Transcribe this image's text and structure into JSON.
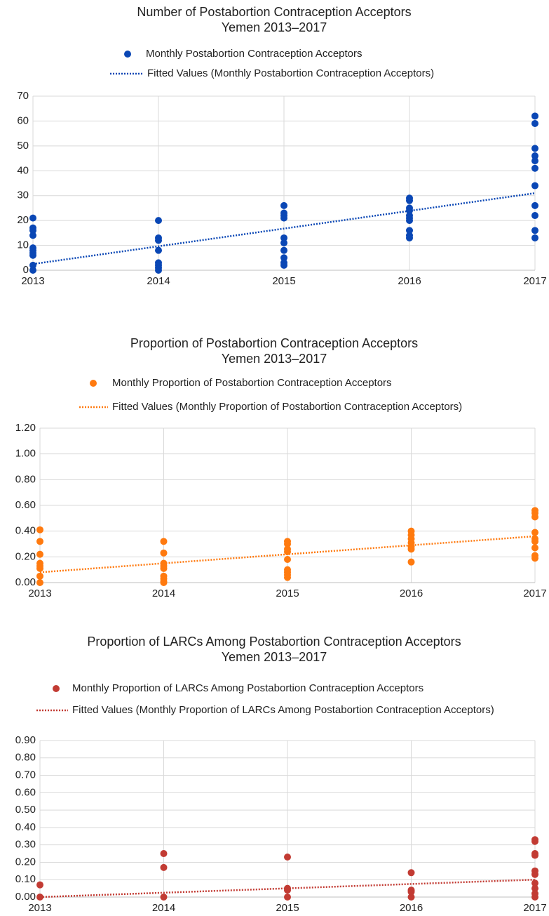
{
  "chart_data": [
    {
      "type": "scatter",
      "title": "Number of Postabortion Contraception Acceptors",
      "subtitle": "Yemen 2013–2017",
      "xlim": [
        2013,
        2017
      ],
      "xticks": [
        2013,
        2014,
        2015,
        2016,
        2017
      ],
      "ylim": [
        0,
        70
      ],
      "yticks": [
        0,
        10,
        20,
        30,
        40,
        50,
        60,
        70
      ],
      "grid": true,
      "series": [
        {
          "name": "Monthly Postabortion Contraception Acceptors",
          "type": "scatter",
          "color": "#0a47b5",
          "x": [
            2013,
            2013,
            2013,
            2013,
            2013,
            2013,
            2013,
            2013,
            2013,
            2013,
            2014,
            2014,
            2014,
            2014,
            2014,
            2014,
            2014,
            2014,
            2015,
            2015,
            2015,
            2015,
            2015,
            2015,
            2015,
            2015,
            2015,
            2015,
            2016,
            2016,
            2016,
            2016,
            2016,
            2016,
            2016,
            2016,
            2016,
            2016,
            2017,
            2017,
            2017,
            2017,
            2017,
            2017,
            2017,
            2017,
            2017,
            2017,
            2017
          ],
          "values": [
            21,
            17,
            16,
            14,
            9,
            8,
            7,
            6,
            2,
            0,
            20,
            13,
            12,
            8,
            3,
            2,
            1,
            0,
            26,
            23,
            22,
            21,
            13,
            11,
            8,
            5,
            3,
            2,
            29,
            28,
            25,
            24,
            22,
            21,
            20,
            16,
            14,
            13,
            62,
            59,
            49,
            46,
            44,
            41,
            34,
            26,
            22,
            16,
            13
          ]
        },
        {
          "name": "Fitted Values (Monthly Postabortion Contraception Acceptors)",
          "type": "line",
          "color": "#0a47b5",
          "x": [
            2013,
            2017
          ],
          "values": [
            2.5,
            31
          ]
        }
      ]
    },
    {
      "type": "scatter",
      "title": "Proportion of Postabortion Contraception Acceptors",
      "subtitle": "Yemen 2013–2017",
      "xlim": [
        2013,
        2017
      ],
      "xticks": [
        2013,
        2014,
        2015,
        2016,
        2017
      ],
      "ylim": [
        0,
        1.2
      ],
      "yticks": [
        {
          "value": 0,
          "label": "0.00"
        },
        {
          "value": 0.2,
          "label": "0.20"
        },
        {
          "value": 0.4,
          "label": "0.40"
        },
        {
          "value": 0.6,
          "label": "0.60"
        },
        {
          "value": 0.8,
          "label": "0.80"
        },
        {
          "value": 1,
          "label": "1.00"
        },
        {
          "value": 1.2,
          "label": "1.20"
        }
      ],
      "grid": true,
      "series": [
        {
          "name": "Monthly Proportion of Postabortion Contraception Acceptors",
          "type": "scatter",
          "color": "#ff7a0f",
          "x": [
            2013,
            2013,
            2013,
            2013,
            2013,
            2013,
            2013,
            2013,
            2014,
            2014,
            2014,
            2014,
            2014,
            2014,
            2014,
            2014,
            2014,
            2015,
            2015,
            2015,
            2015,
            2015,
            2015,
            2015,
            2015,
            2015,
            2016,
            2016,
            2016,
            2016,
            2016,
            2016,
            2016,
            2017,
            2017,
            2017,
            2017,
            2017,
            2017,
            2017,
            2017,
            2017
          ],
          "values": [
            0.41,
            0.32,
            0.22,
            0.15,
            0.13,
            0.11,
            0.05,
            0,
            0.32,
            0.23,
            0.15,
            0.13,
            0.11,
            0.05,
            0.03,
            0.01,
            0,
            0.32,
            0.3,
            0.26,
            0.24,
            0.18,
            0.1,
            0.08,
            0.06,
            0.04,
            0.4,
            0.37,
            0.34,
            0.31,
            0.28,
            0.26,
            0.16,
            0.56,
            0.54,
            0.51,
            0.39,
            0.34,
            0.32,
            0.27,
            0.21,
            0.19
          ]
        },
        {
          "name": "Fitted Values (Monthly Proportion of Postabortion Contraception Acceptors)",
          "type": "line",
          "color": "#ff7a0f",
          "x": [
            2013,
            2017
          ],
          "values": [
            0.08,
            0.36
          ]
        }
      ]
    },
    {
      "type": "scatter",
      "title": "Proportion of LARCs Among Postabortion Contraception Acceptors",
      "subtitle": "Yemen 2013–2017",
      "xlim": [
        2013,
        2017
      ],
      "xticks": [
        2013,
        2014,
        2015,
        2016,
        2017
      ],
      "ylim": [
        0,
        0.9
      ],
      "yticks": [
        {
          "value": 0,
          "label": "0.00"
        },
        {
          "value": 0.1,
          "label": "0.10"
        },
        {
          "value": 0.2,
          "label": "0.20"
        },
        {
          "value": 0.3,
          "label": "0.30"
        },
        {
          "value": 0.4,
          "label": "0.40"
        },
        {
          "value": 0.5,
          "label": "0.50"
        },
        {
          "value": 0.6,
          "label": "0.60"
        },
        {
          "value": 0.7,
          "label": "0.70"
        },
        {
          "value": 0.8,
          "label": "0.80"
        },
        {
          "value": 0.9,
          "label": "0.90"
        }
      ],
      "grid": true,
      "series": [
        {
          "name": "Monthly Proportion of LARCs Among Postabortion Contraception Acceptors",
          "type": "scatter",
          "color": "#c23b33",
          "x": [
            2013,
            2013,
            2014,
            2014,
            2014,
            2015,
            2015,
            2015,
            2015,
            2016,
            2016,
            2016,
            2016,
            2017,
            2017,
            2017,
            2017,
            2017,
            2017,
            2017,
            2017,
            2017,
            2017
          ],
          "values": [
            0.07,
            0,
            0.25,
            0.17,
            0,
            0.23,
            0.05,
            0.04,
            0,
            0.14,
            0.04,
            0.03,
            0,
            0.33,
            0.32,
            0.25,
            0.24,
            0.15,
            0.13,
            0.08,
            0.05,
            0.02,
            0
          ]
        },
        {
          "name": "Fitted Values (Monthly Proportion of LARCs Among Postabortion Contraception Acceptors)",
          "type": "line",
          "color": "#c23b33",
          "x": [
            2013,
            2017
          ],
          "values": [
            0,
            0.1
          ]
        }
      ]
    }
  ]
}
